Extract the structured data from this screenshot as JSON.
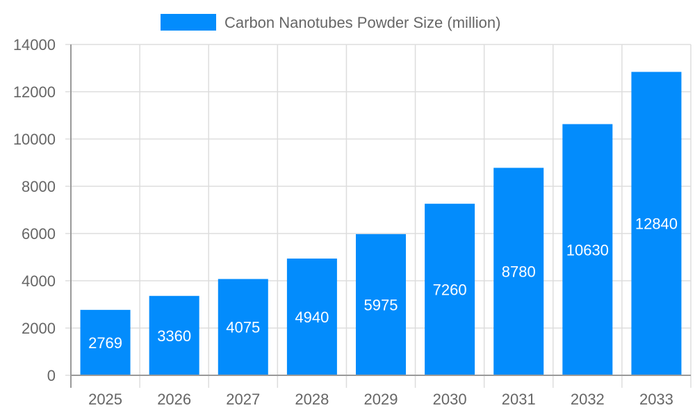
{
  "chart_data": {
    "type": "bar",
    "title": "",
    "legend": [
      {
        "label": "Carbon Nanotubes Powder Size (million)",
        "color": "#038CFC"
      }
    ],
    "legend_position": "top",
    "categories": [
      "2025",
      "2026",
      "2027",
      "2028",
      "2029",
      "2030",
      "2031",
      "2032",
      "2033"
    ],
    "series": [
      {
        "name": "Carbon Nanotubes Powder Size (million)",
        "values": [
          2769,
          3360,
          4075,
          4940,
          5975,
          7260,
          8780,
          10630,
          12840
        ]
      }
    ],
    "xlabel": "",
    "ylabel": "",
    "ylim": [
      0,
      14000
    ],
    "yticks": [
      0,
      2000,
      4000,
      6000,
      8000,
      10000,
      12000,
      14000
    ],
    "grid": true,
    "data_labels": true
  },
  "colors": {
    "bar": "#038CFC",
    "grid": "#DDDDDD",
    "axis": "#999999",
    "tick_text": "#666666",
    "label_text": "#FFFFFF"
  }
}
